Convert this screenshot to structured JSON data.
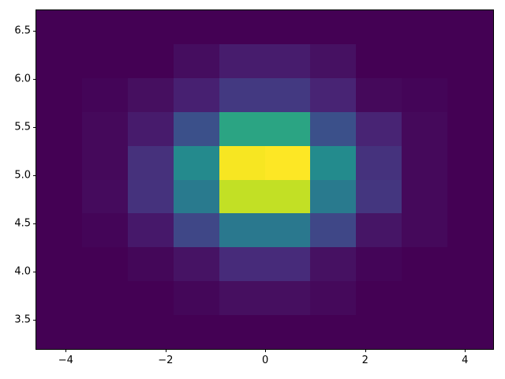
{
  "figure": {
    "background": "#ffffff",
    "spine_color": "#000000",
    "tick_color": "#000000",
    "tick_label_color": "#000000"
  },
  "chart_data": {
    "type": "heatmap",
    "subtype": "hist2d",
    "colormap": "viridis",
    "title": "",
    "xlabel": "",
    "ylabel": "",
    "x_range": [
      -4.59,
      4.58
    ],
    "y_range": [
      3.19,
      6.71
    ],
    "n_bins_x": 10,
    "n_bins_y": 10,
    "legend": "none",
    "grid": false,
    "x_ticks": [
      {
        "label": "−4",
        "pos_pct": 6.44
      },
      {
        "label": "−2",
        "pos_pct": 28.29
      },
      {
        "label": "0",
        "pos_pct": 50.12
      },
      {
        "label": "2",
        "pos_pct": 71.97
      },
      {
        "label": "4",
        "pos_pct": 93.82
      }
    ],
    "y_ticks": [
      {
        "label": "6.5",
        "pos_pct": 5.99
      },
      {
        "label": "6.0",
        "pos_pct": 20.21
      },
      {
        "label": "5.5",
        "pos_pct": 34.43
      },
      {
        "label": "5.0",
        "pos_pct": 48.65
      },
      {
        "label": "4.5",
        "pos_pct": 62.87
      },
      {
        "label": "4.0",
        "pos_pct": 77.09
      },
      {
        "label": "3.5",
        "pos_pct": 91.31
      }
    ],
    "estimated_counts_rows_top_to_bottom": [
      [
        0,
        0,
        0,
        0,
        0,
        0,
        0,
        0,
        0,
        0
      ],
      [
        0,
        0,
        0,
        1,
        3,
        3,
        2,
        0,
        0,
        0
      ],
      [
        0,
        1,
        2,
        4,
        7,
        7,
        4,
        1,
        1,
        0
      ],
      [
        0,
        1,
        3,
        10,
        25,
        25,
        10,
        4,
        1,
        0
      ],
      [
        0,
        1,
        6,
        21,
        45,
        46,
        21,
        6,
        1,
        0
      ],
      [
        0,
        1,
        6,
        17,
        38,
        38,
        17,
        6,
        1,
        0
      ],
      [
        0,
        1,
        3,
        9,
        17,
        17,
        9,
        2,
        1,
        0
      ],
      [
        0,
        0,
        1,
        2,
        5,
        5,
        2,
        1,
        0,
        0
      ],
      [
        0,
        0,
        0,
        1,
        2,
        2,
        1,
        0,
        0,
        0
      ],
      [
        0,
        0,
        0,
        0,
        0,
        0,
        0,
        0,
        0,
        0
      ]
    ],
    "cell_colors_rows_top_to_bottom": [
      [
        "#440154",
        "#440154",
        "#440154",
        "#440154",
        "#440154",
        "#440154",
        "#440154",
        "#440154",
        "#440154",
        "#440154"
      ],
      [
        "#440154",
        "#440154",
        "#440154",
        "#450d5f",
        "#471c6d",
        "#471c6d",
        "#461162",
        "#440154",
        "#440154",
        "#440154"
      ],
      [
        "#440154",
        "#440558",
        "#460f60",
        "#472071",
        "#433981",
        "#433981",
        "#482474",
        "#45095b",
        "#440558",
        "#440154"
      ],
      [
        "#440154",
        "#45095b",
        "#471b6c",
        "#3b508a",
        "#2ba483",
        "#2ba483",
        "#3b508a",
        "#482474",
        "#45095b",
        "#440154"
      ],
      [
        "#440154",
        "#45095b",
        "#46317c",
        "#248a8d",
        "#f7e622",
        "#fde725",
        "#238b8d",
        "#45327d",
        "#45095b",
        "#440154"
      ],
      [
        "#440154",
        "#450b5d",
        "#45327d",
        "#297a8e",
        "#c2e025",
        "#c2e025",
        "#297a8e",
        "#44367f",
        "#45095b",
        "#440154"
      ],
      [
        "#440154",
        "#440558",
        "#46186a",
        "#3f4787",
        "#2a788e",
        "#2a788e",
        "#3f4787",
        "#461566",
        "#45095b",
        "#440154"
      ],
      [
        "#440154",
        "#440154",
        "#440759",
        "#461364",
        "#472b7a",
        "#472b7a",
        "#461162",
        "#440558",
        "#440154",
        "#440154"
      ],
      [
        "#440154",
        "#440154",
        "#440154",
        "#440759",
        "#460f60",
        "#460f60",
        "#45095b",
        "#440154",
        "#440154",
        "#440154"
      ],
      [
        "#440154",
        "#440154",
        "#440154",
        "#440154",
        "#440154",
        "#440154",
        "#440154",
        "#440154",
        "#440154",
        "#440154"
      ]
    ]
  }
}
